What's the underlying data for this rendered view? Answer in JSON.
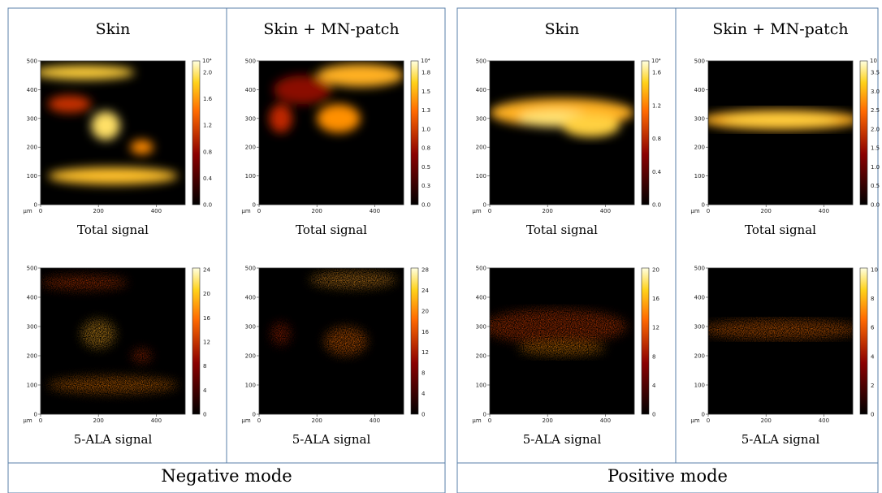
{
  "groups": [
    {
      "label": "Negative mode",
      "columns": [
        {
          "title": "Skin",
          "panels": [
            {
              "caption": "Total signal",
              "cbar": {
                "exponent": "10⁴",
                "ticks": [
                  "2.0",
                  "1.6",
                  "1.2",
                  "0.8",
                  "0.4",
                  "0.0"
                ]
              }
            },
            {
              "caption": "5-ALA signal",
              "cbar": {
                "ticks": [
                  "24",
                  "20",
                  "16",
                  "12",
                  "8",
                  "4",
                  "0"
                ]
              }
            }
          ]
        },
        {
          "title": "Skin + MN-patch",
          "panels": [
            {
              "caption": "Total signal",
              "cbar": {
                "exponent": "10⁴",
                "ticks": [
                  "1.8",
                  "1.5",
                  "1.3",
                  "1.0",
                  "0.8",
                  "0.5",
                  "0.3",
                  "0.0"
                ]
              }
            },
            {
              "caption": "5-ALA signal",
              "cbar": {
                "ticks": [
                  "28",
                  "24",
                  "20",
                  "16",
                  "12",
                  "8",
                  "4",
                  "0"
                ]
              }
            }
          ]
        }
      ]
    },
    {
      "label": "Positive mode",
      "columns": [
        {
          "title": "Skin",
          "panels": [
            {
              "caption": "Total signal",
              "cbar": {
                "exponent": "10⁴",
                "ticks": [
                  "1.6",
                  "1.2",
                  "0.8",
                  "0.4",
                  "0.0"
                ]
              }
            },
            {
              "caption": "5-ALA signal",
              "cbar": {
                "ticks": [
                  "20",
                  "16",
                  "12",
                  "8",
                  "4",
                  "0"
                ]
              }
            }
          ]
        },
        {
          "title": "Skin + MN-patch",
          "panels": [
            {
              "caption": "Total signal",
              "cbar": {
                "exponent": "10",
                "ticks": [
                  "3.5",
                  "3.0",
                  "2.5",
                  "2.0",
                  "1.5",
                  "1.0",
                  "0.5",
                  "0.0"
                ]
              }
            },
            {
              "caption": "5-ALA signal",
              "cbar": {
                "ticks": [
                  "10",
                  "8",
                  "6",
                  "4",
                  "2",
                  "0"
                ]
              }
            }
          ]
        }
      ]
    }
  ],
  "axes": {
    "unit": "µm",
    "yticks": [
      0,
      100,
      200,
      300,
      400,
      500
    ],
    "xticks": [
      0,
      200,
      400
    ]
  }
}
